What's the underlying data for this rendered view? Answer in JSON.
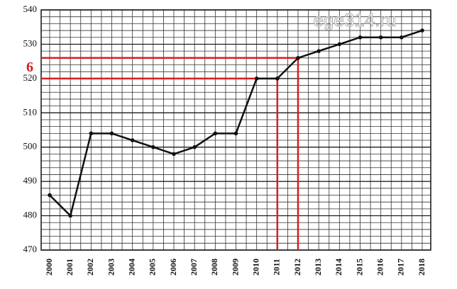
{
  "chart_data": {
    "type": "line",
    "categories": [
      "2000",
      "2001",
      "2002",
      "2003",
      "2004",
      "2005",
      "2006",
      "2007",
      "2008",
      "2009",
      "2010",
      "2011",
      "2012",
      "2013",
      "2014",
      "2015",
      "2016",
      "2017",
      "2018"
    ],
    "series": [
      {
        "color": "#111111",
        "values": [
          486,
          480,
          504,
          504,
          502,
          500,
          498,
          500,
          504,
          504,
          520,
          520,
          526,
          528,
          530,
          532,
          532,
          532,
          534
        ]
      }
    ],
    "ylim": [
      470,
      540
    ],
    "yticks": [
      470,
      480,
      490,
      500,
      510,
      520,
      530,
      540
    ],
    "grid": true,
    "ygrid_step": 2,
    "reference_lines": [
      {
        "y": 520,
        "x": "2011",
        "color": "#d42020"
      },
      {
        "y": 526,
        "x": "2012",
        "color": "#d42020"
      }
    ],
    "annotation": "6",
    "watermark": "ege314.ru"
  }
}
